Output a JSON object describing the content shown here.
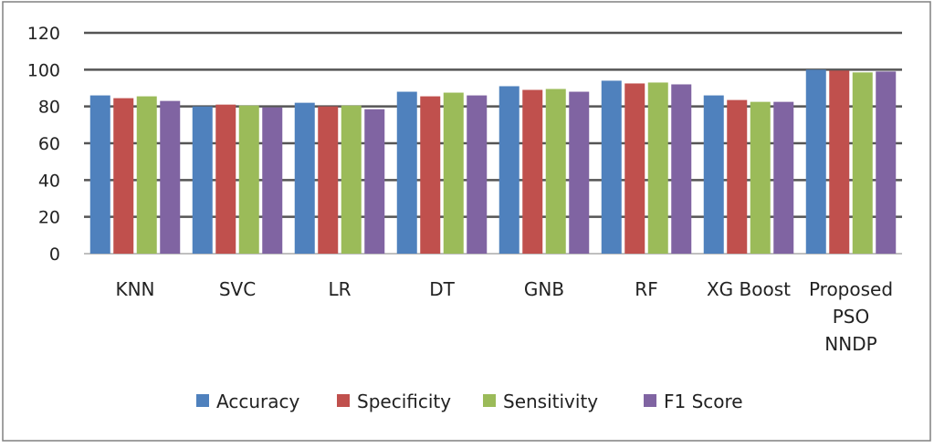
{
  "chart_data": {
    "type": "bar",
    "categories": [
      "KNN",
      "SVC",
      "LR",
      "DT",
      "GNB",
      "RF",
      "XG Boost",
      "Proposed PSO NNDP"
    ],
    "category_lines": [
      [
        "KNN"
      ],
      [
        "SVC"
      ],
      [
        "LR"
      ],
      [
        "DT"
      ],
      [
        "GNB"
      ],
      [
        "RF"
      ],
      [
        "XG Boost"
      ],
      [
        "Proposed",
        "PSO",
        "NNDP"
      ]
    ],
    "series": [
      {
        "name": "Accuracy",
        "color": "#4F81BD",
        "values": [
          86,
          80,
          82,
          88,
          91,
          94,
          86,
          100
        ]
      },
      {
        "name": "Specificity",
        "color": "#C0504D",
        "values": [
          84.5,
          81,
          80,
          85.5,
          89,
          92.5,
          83.5,
          99.5
        ]
      },
      {
        "name": "Sensitivity",
        "color": "#9BBB59",
        "values": [
          85.5,
          80.5,
          80.5,
          87.5,
          89.5,
          93,
          82.5,
          98.5
        ]
      },
      {
        "name": "F1 Score",
        "color": "#8064A2",
        "values": [
          83,
          79.5,
          78.5,
          86,
          88,
          92,
          82.5,
          99
        ]
      }
    ],
    "yticks": [
      0,
      20,
      40,
      60,
      80,
      100,
      120
    ],
    "ylim": [
      0,
      120
    ],
    "grid": true,
    "legend_position": "bottom",
    "title": "",
    "xlabel": "",
    "ylabel": ""
  }
}
